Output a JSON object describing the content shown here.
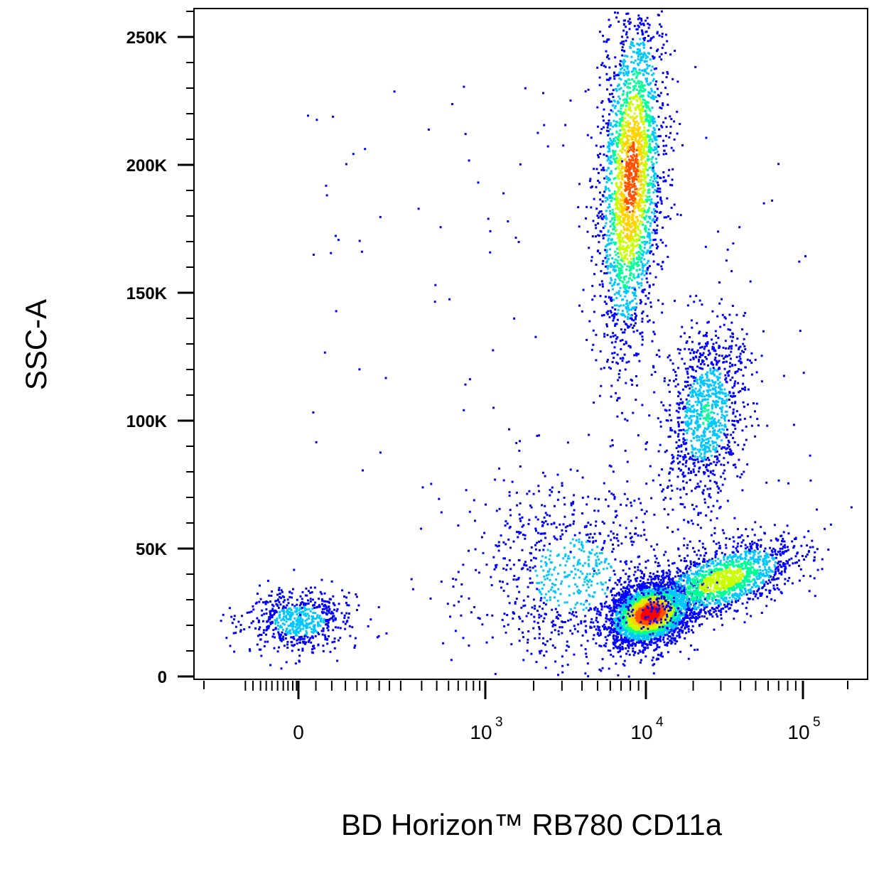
{
  "chart_data": {
    "type": "scatter",
    "subtype": "flow-cytometry-density-dot-plot",
    "xlabel": "BD Horizon™ RB780  CD11a",
    "ylabel": "SSC-A",
    "x_scale": "biexponential",
    "y_scale": "linear",
    "xlim": [
      -300,
      150000
    ],
    "ylim": [
      0,
      262144
    ],
    "y_ticks": [
      {
        "value": 0,
        "label": "0"
      },
      {
        "value": 50000,
        "label": "50K"
      },
      {
        "value": 100000,
        "label": "100K"
      },
      {
        "value": 150000,
        "label": "150K"
      },
      {
        "value": 200000,
        "label": "200K"
      },
      {
        "value": 250000,
        "label": "250K"
      }
    ],
    "x_ticks": [
      {
        "value": 0,
        "base": "0",
        "exp": ""
      },
      {
        "value": 1000,
        "base": "10",
        "exp": "3"
      },
      {
        "value": 10000,
        "base": "10",
        "exp": "4"
      },
      {
        "value": 100000,
        "base": "10",
        "exp": "5"
      }
    ],
    "density_colors": [
      "#0000ff",
      "#00c8ff",
      "#00ff96",
      "#c8ff00",
      "#ffd200",
      "#ff5000",
      "#ff0000"
    ],
    "populations": [
      {
        "name": "",
        "x_center": 0,
        "y_center": 22000,
        "count": 650,
        "density_peak": 0.25
      },
      {
        "name": "",
        "x_center": 8000,
        "y_center": 195000,
        "count": 2600,
        "density_peak": 0.8
      },
      {
        "name": "",
        "x_center": 24000,
        "y_center": 103000,
        "count": 1100,
        "density_peak": 0.3
      },
      {
        "name": "",
        "x_center": 10500,
        "y_center": 25000,
        "count": 3200,
        "density_peak": 1.0
      },
      {
        "name": "",
        "x_center": 30000,
        "y_center": 38000,
        "count": 1500,
        "density_peak": 0.55
      },
      {
        "name": "",
        "x_center": 3500,
        "y_center": 40000,
        "count": 900,
        "density_peak": 0.2
      }
    ],
    "grid": false,
    "legend": "none"
  }
}
